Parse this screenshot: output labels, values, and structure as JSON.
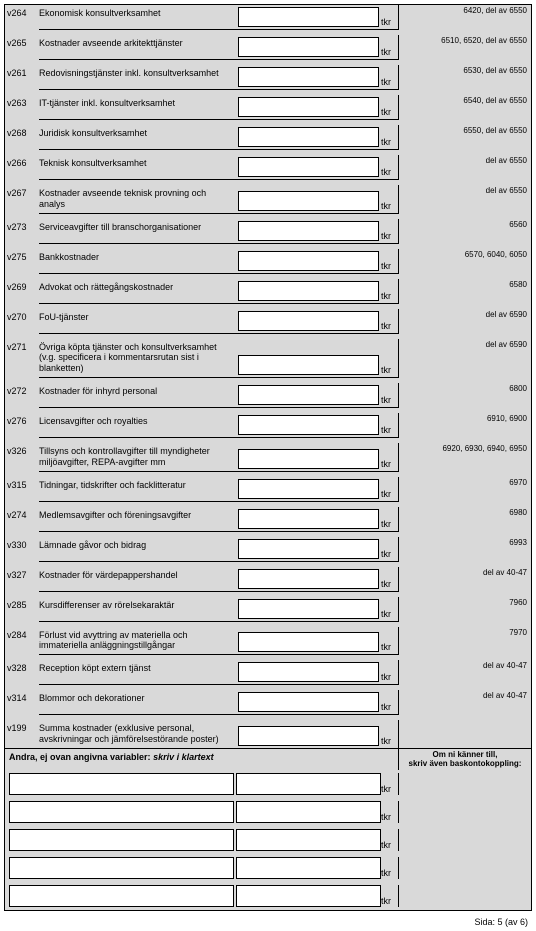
{
  "unit": "tkr",
  "rows": [
    {
      "code": "v264",
      "label": "Ekonomisk konsultverksamhet",
      "note": "6420, del av 6550"
    },
    {
      "code": "v265",
      "label": "Kostnader avseende arkitekttjänster",
      "note": "6510, 6520, del av 6550"
    },
    {
      "code": "v261",
      "label": "Redovisningstjänster inkl. konsultverksamhet",
      "note": "6530, del av 6550"
    },
    {
      "code": "v263",
      "label": "IT-tjänster inkl. konsultverksamhet",
      "note": "6540, del av 6550"
    },
    {
      "code": "v268",
      "label": "Juridisk konsultverksamhet",
      "note": "6550, del av 6550"
    },
    {
      "code": "v266",
      "label": "Teknisk konsultverksamhet",
      "note": "del av 6550"
    },
    {
      "code": "v267",
      "label": "Kostnader avseende teknisk provning och analys",
      "note": "del av 6550"
    },
    {
      "code": "v273",
      "label": "Serviceavgifter till branschorganisationer",
      "note": "6560"
    },
    {
      "code": "v275",
      "label": "Bankkostnader",
      "note": "6570, 6040, 6050"
    },
    {
      "code": "v269",
      "label": "Advokat och rättegångskostnader",
      "note": "6580"
    },
    {
      "code": "v270",
      "label": "FoU-tjänster",
      "note": "del av 6590"
    },
    {
      "code": "v271",
      "label": "Övriga köpta tjänster och konsultverksamhet (v.g. specificera i kommentarsrutan sist i blanketten)",
      "note": "del av 6590"
    },
    {
      "code": "v272",
      "label": "Kostnader för inhyrd personal",
      "note": "6800"
    },
    {
      "code": "v276",
      "label": "Licensavgifter och royalties",
      "note": "6910, 6900"
    },
    {
      "code": "v326",
      "label": "Tillsyns och kontrollavgifter till myndigheter miljöavgifter, REPA-avgifter mm",
      "note": "6920, 6930, 6940, 6950"
    },
    {
      "code": "v315",
      "label": "Tidningar, tidskrifter och facklitteratur",
      "note": "6970"
    },
    {
      "code": "v274",
      "label": "Medlemsavgifter och föreningsavgifter",
      "note": "6980"
    },
    {
      "code": "v330",
      "label": "Lämnade gåvor och bidrag",
      "note": "6993"
    },
    {
      "code": "v327",
      "label": "Kostnader för värdepappershandel",
      "note": "del av 40-47"
    },
    {
      "code": "v285",
      "label": "Kursdifferenser av rörelsekaraktär",
      "note": "7960"
    },
    {
      "code": "v284",
      "label": "Förlust vid avyttring av materiella och immateriella anläggningstillgångar",
      "note": "7970"
    },
    {
      "code": "v328",
      "label": "Reception köpt extern tjänst",
      "note": "del av 40-47"
    },
    {
      "code": "v314",
      "label": "Blommor och dekorationer",
      "note": "del av 40-47"
    },
    {
      "code": "v199",
      "label": "Summa kostnader (exklusive personal, avskrivningar och jämförelsestörande poster)",
      "note": ""
    }
  ],
  "section": {
    "left_plain": "Andra, ej ovan angivna variabler:  ",
    "left_italic": "skriv i klartext",
    "right_line1": "Om ni känner till,",
    "right_line2": "skriv även baskontokoppling:"
  },
  "free_rows": 5,
  "footer": "Sida: 5 (av 6)"
}
